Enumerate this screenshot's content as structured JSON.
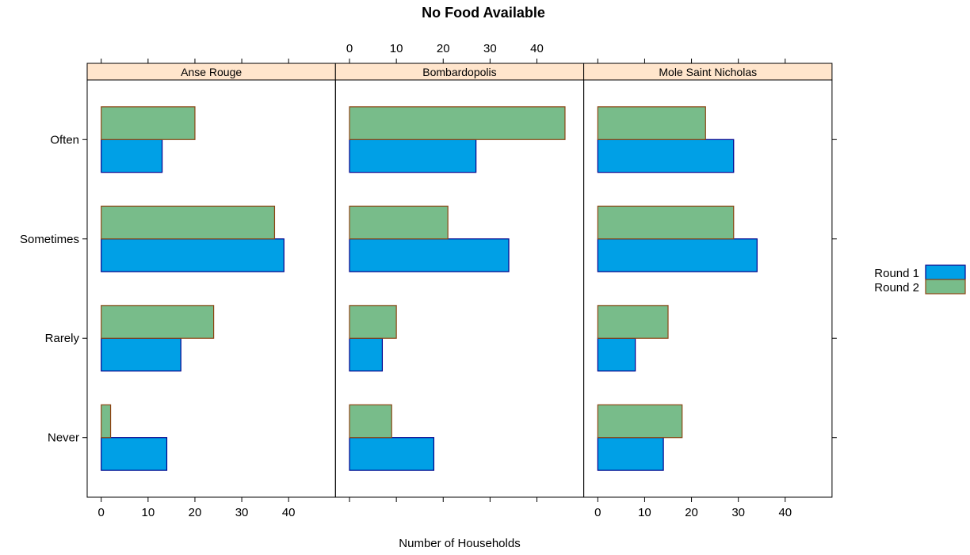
{
  "chart_data": {
    "type": "bar",
    "orientation": "horizontal",
    "title": "No Food Available",
    "xlabel": "Number of Households",
    "ylabel": "",
    "xlim": [
      -3,
      50
    ],
    "x_ticks": [
      0,
      10,
      20,
      30,
      40
    ],
    "categories": [
      "Never",
      "Rarely",
      "Sometimes",
      "Often"
    ],
    "legend": {
      "position": "right",
      "entries": [
        {
          "name": "Round 1",
          "color": "#00A0E6"
        },
        {
          "name": "Round 2",
          "color": "#78BC8A"
        }
      ]
    },
    "strip_color": "#FFE5CC",
    "panels": [
      {
        "name": "Anse Rouge",
        "series": [
          {
            "name": "Round 1",
            "values": [
              14,
              17,
              39,
              13
            ]
          },
          {
            "name": "Round 2",
            "values": [
              2,
              24,
              37,
              20
            ]
          }
        ]
      },
      {
        "name": "Bombardopolis",
        "series": [
          {
            "name": "Round 1",
            "values": [
              18,
              7,
              34,
              27
            ]
          },
          {
            "name": "Round 2",
            "values": [
              9,
              10,
              21,
              46
            ]
          }
        ]
      },
      {
        "name": "Mole Saint Nicholas",
        "series": [
          {
            "name": "Round 1",
            "values": [
              14,
              8,
              34,
              29
            ]
          },
          {
            "name": "Round 2",
            "values": [
              18,
              15,
              29,
              23
            ]
          }
        ]
      }
    ]
  }
}
